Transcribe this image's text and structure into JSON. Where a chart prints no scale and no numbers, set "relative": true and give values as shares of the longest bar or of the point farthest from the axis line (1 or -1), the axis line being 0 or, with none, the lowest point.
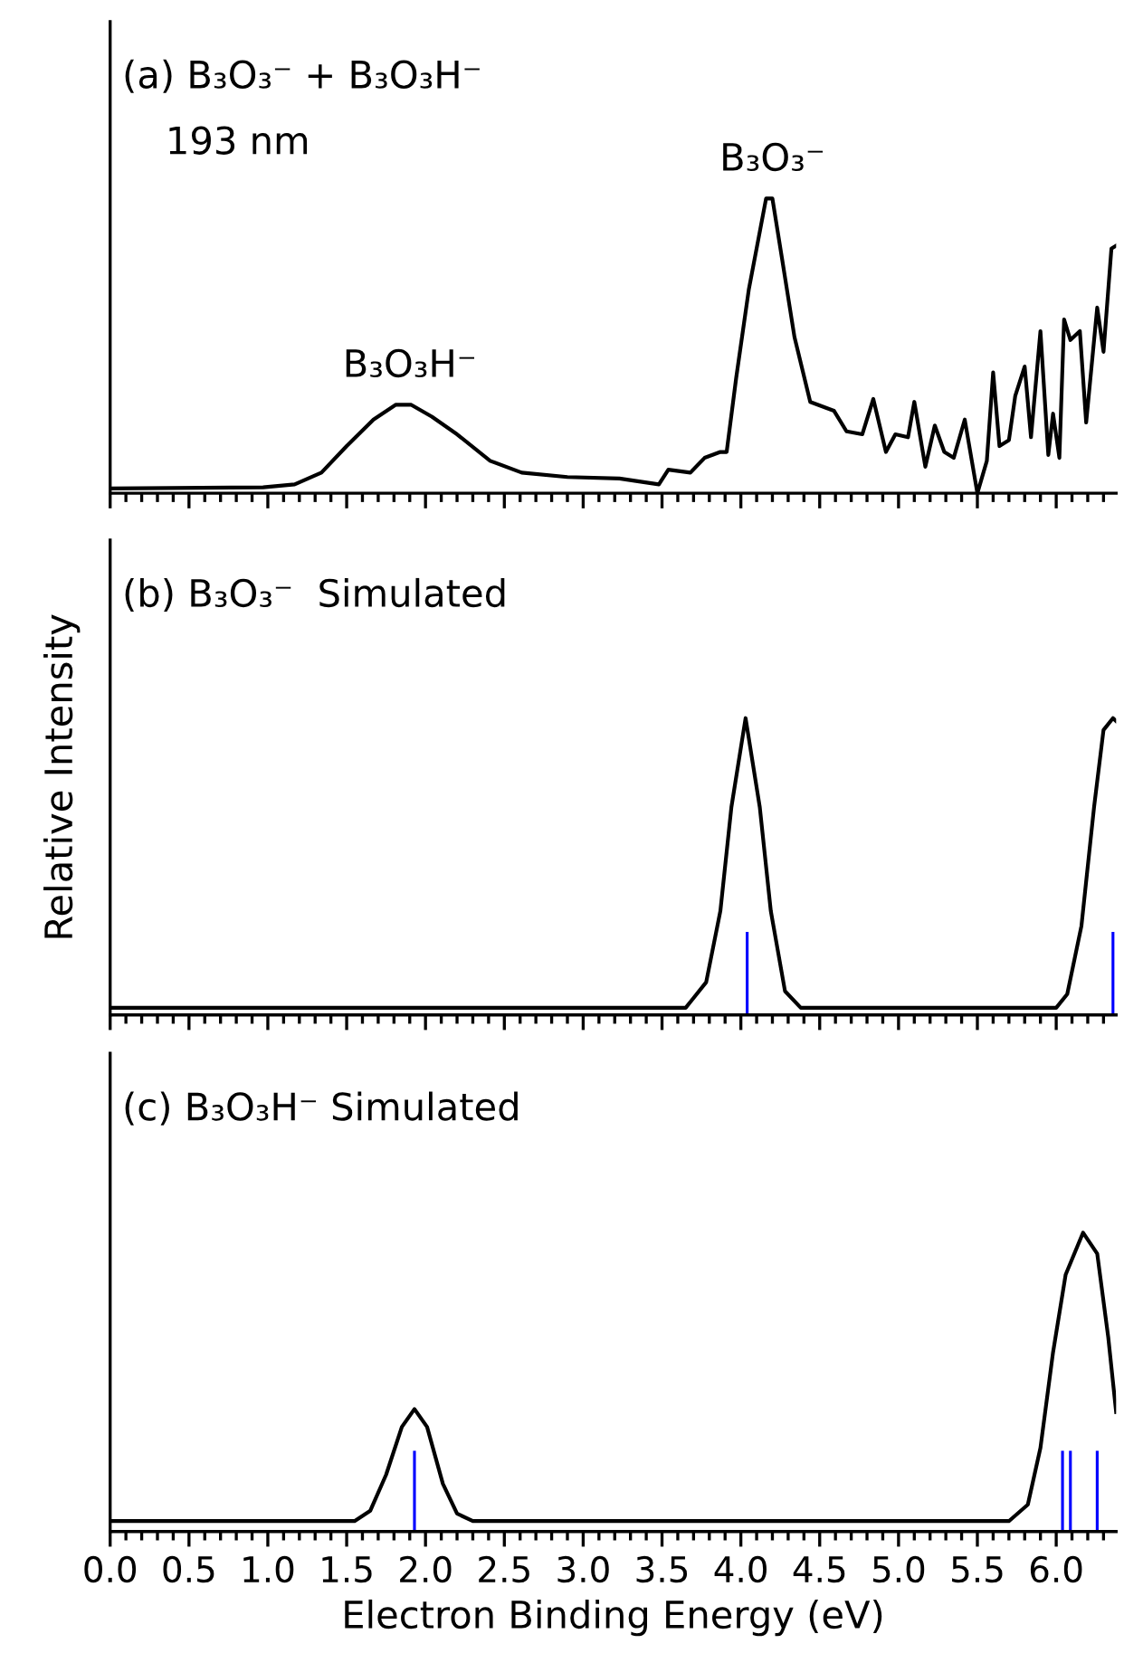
{
  "chart_data": [
    {
      "type": "line",
      "relative": true,
      "title": "(a) B₃O₃⁻ + B₃O₃H⁻",
      "subtitle": "193 nm",
      "xlim": [
        0,
        6.38
      ],
      "tick_labels": false,
      "xticks": [
        {
          "value": 0,
          "label": null
        },
        {
          "value": 0.1,
          "label": null
        },
        {
          "value": 0.2,
          "label": null
        },
        {
          "value": 0.3,
          "label": null
        },
        {
          "value": 0.4,
          "label": null
        },
        {
          "value": 0.5,
          "label": null
        },
        {
          "value": 0.6,
          "label": null
        },
        {
          "value": 0.7,
          "label": null
        },
        {
          "value": 0.8,
          "label": null
        },
        {
          "value": 0.9,
          "label": null
        },
        {
          "value": 1.0,
          "label": null
        },
        {
          "value": 1.1,
          "label": null
        },
        {
          "value": 1.2,
          "label": null
        },
        {
          "value": 1.3,
          "label": null
        },
        {
          "value": 1.4,
          "label": null
        },
        {
          "value": 1.5,
          "label": null
        },
        {
          "value": 1.6,
          "label": null
        },
        {
          "value": 1.7,
          "label": null
        },
        {
          "value": 1.8,
          "label": null
        },
        {
          "value": 1.9,
          "label": null
        },
        {
          "value": 2.0,
          "label": null
        },
        {
          "value": 2.1,
          "label": null
        },
        {
          "value": 2.2,
          "label": null
        },
        {
          "value": 2.3,
          "label": null
        },
        {
          "value": 2.4,
          "label": null
        },
        {
          "value": 2.5,
          "label": null
        },
        {
          "value": 2.6,
          "label": null
        },
        {
          "value": 2.7,
          "label": null
        },
        {
          "value": 2.8,
          "label": null
        },
        {
          "value": 2.9,
          "label": null
        },
        {
          "value": 3.0,
          "label": null
        },
        {
          "value": 3.1,
          "label": null
        },
        {
          "value": 3.2,
          "label": null
        },
        {
          "value": 3.3,
          "label": null
        },
        {
          "value": 3.4,
          "label": null
        },
        {
          "value": 3.5,
          "label": null
        },
        {
          "value": 3.6,
          "label": null
        },
        {
          "value": 3.7,
          "label": null
        },
        {
          "value": 3.8,
          "label": null
        },
        {
          "value": 3.9,
          "label": null
        },
        {
          "value": 4.0,
          "label": null
        },
        {
          "value": 4.1,
          "label": null
        },
        {
          "value": 4.2,
          "label": null
        },
        {
          "value": 4.3,
          "label": null
        },
        {
          "value": 4.4,
          "label": null
        },
        {
          "value": 4.5,
          "label": null
        },
        {
          "value": 4.6,
          "label": null
        },
        {
          "value": 4.7,
          "label": null
        },
        {
          "value": 4.8,
          "label": null
        },
        {
          "value": 4.9,
          "label": null
        },
        {
          "value": 5.0,
          "label": null
        },
        {
          "value": 5.1,
          "label": null
        },
        {
          "value": 5.2,
          "label": null
        },
        {
          "value": 5.3,
          "label": null
        },
        {
          "value": 5.4,
          "label": null
        },
        {
          "value": 5.5,
          "label": null
        },
        {
          "value": 5.6,
          "label": null
        },
        {
          "value": 5.7,
          "label": null
        },
        {
          "value": 5.8,
          "label": null
        },
        {
          "value": 5.9,
          "label": null
        },
        {
          "value": 6.0,
          "label": null
        },
        {
          "value": 6.1,
          "label": null
        },
        {
          "value": 6.2,
          "label": null
        },
        {
          "value": 6.3,
          "label": null
        }
      ],
      "annotations": [
        {
          "text": "B₃O₃H⁻",
          "x": 1.9,
          "y": 0.3
        },
        {
          "text": "B₃O₃⁻",
          "x": 4.2,
          "y": 1.0
        }
      ],
      "series": [
        {
          "color": "#000000",
          "x": [
            0,
            0.97,
            1.17,
            1.34,
            1.5,
            1.67,
            1.81,
            1.91,
            2.04,
            2.2,
            2.41,
            2.61,
            2.9,
            3.23,
            3.48,
            3.54,
            3.68,
            3.77,
            3.87,
            3.91,
            3.97,
            4.05,
            4.16,
            4.2,
            4.26,
            4.34,
            4.44,
            4.59,
            4.67,
            4.77,
            4.84,
            4.92,
            4.98,
            5.06,
            5.1,
            5.17,
            5.23,
            5.29,
            5.35,
            5.42,
            5.5,
            5.56,
            5.6,
            5.64,
            5.7,
            5.74,
            5.8,
            5.84,
            5.9,
            5.95,
            5.98,
            6.02,
            6.05,
            6.09,
            6.15,
            6.19,
            6.26,
            6.3,
            6.35,
            6.38
          ],
          "values": [
            0.016,
            0.02,
            0.03,
            0.07,
            0.16,
            0.25,
            0.3,
            0.3,
            0.26,
            0.2,
            0.11,
            0.07,
            0.055,
            0.05,
            0.03,
            0.08,
            0.07,
            0.12,
            0.14,
            0.14,
            0.39,
            0.69,
            1.0,
            1.0,
            0.8,
            0.53,
            0.31,
            0.28,
            0.21,
            0.2,
            0.32,
            0.14,
            0.2,
            0.19,
            0.31,
            0.09,
            0.23,
            0.14,
            0.12,
            0.25,
            0.0,
            0.11,
            0.41,
            0.16,
            0.18,
            0.33,
            0.43,
            0.19,
            0.55,
            0.13,
            0.27,
            0.12,
            0.59,
            0.52,
            0.55,
            0.24,
            0.63,
            0.48,
            0.83,
            0.84
          ]
        }
      ]
    },
    {
      "type": "line",
      "relative": true,
      "title": "(b) B₃O₃⁻  Simulated",
      "ylabel": "Relative Intensity",
      "xlim": [
        0,
        6.38
      ],
      "tick_labels": false,
      "xticks": [
        {
          "value": 0,
          "label": null
        },
        {
          "value": 0.1,
          "label": null
        },
        {
          "value": 0.2,
          "label": null
        },
        {
          "value": 0.3,
          "label": null
        },
        {
          "value": 0.4,
          "label": null
        },
        {
          "value": 0.5,
          "label": null
        },
        {
          "value": 0.6,
          "label": null
        },
        {
          "value": 0.7,
          "label": null
        },
        {
          "value": 0.8,
          "label": null
        },
        {
          "value": 0.9,
          "label": null
        },
        {
          "value": 1.0,
          "label": null
        },
        {
          "value": 1.1,
          "label": null
        },
        {
          "value": 1.2,
          "label": null
        },
        {
          "value": 1.3,
          "label": null
        },
        {
          "value": 1.4,
          "label": null
        },
        {
          "value": 1.5,
          "label": null
        },
        {
          "value": 1.6,
          "label": null
        },
        {
          "value": 1.7,
          "label": null
        },
        {
          "value": 1.8,
          "label": null
        },
        {
          "value": 1.9,
          "label": null
        },
        {
          "value": 2.0,
          "label": null
        },
        {
          "value": 2.1,
          "label": null
        },
        {
          "value": 2.2,
          "label": null
        },
        {
          "value": 2.3,
          "label": null
        },
        {
          "value": 2.4,
          "label": null
        },
        {
          "value": 2.5,
          "label": null
        },
        {
          "value": 2.6,
          "label": null
        },
        {
          "value": 2.7,
          "label": null
        },
        {
          "value": 2.8,
          "label": null
        },
        {
          "value": 2.9,
          "label": null
        },
        {
          "value": 3.0,
          "label": null
        },
        {
          "value": 3.1,
          "label": null
        },
        {
          "value": 3.2,
          "label": null
        },
        {
          "value": 3.3,
          "label": null
        },
        {
          "value": 3.4,
          "label": null
        },
        {
          "value": 3.5,
          "label": null
        },
        {
          "value": 3.6,
          "label": null
        },
        {
          "value": 3.7,
          "label": null
        },
        {
          "value": 3.8,
          "label": null
        },
        {
          "value": 3.9,
          "label": null
        },
        {
          "value": 4.0,
          "label": null
        },
        {
          "value": 4.1,
          "label": null
        },
        {
          "value": 4.2,
          "label": null
        },
        {
          "value": 4.3,
          "label": null
        },
        {
          "value": 4.4,
          "label": null
        },
        {
          "value": 4.5,
          "label": null
        },
        {
          "value": 4.6,
          "label": null
        },
        {
          "value": 4.7,
          "label": null
        },
        {
          "value": 4.8,
          "label": null
        },
        {
          "value": 4.9,
          "label": null
        },
        {
          "value": 5.0,
          "label": null
        },
        {
          "value": 5.1,
          "label": null
        },
        {
          "value": 5.2,
          "label": null
        },
        {
          "value": 5.3,
          "label": null
        },
        {
          "value": 5.4,
          "label": null
        },
        {
          "value": 5.5,
          "label": null
        },
        {
          "value": 5.6,
          "label": null
        },
        {
          "value": 5.7,
          "label": null
        },
        {
          "value": 5.8,
          "label": null
        },
        {
          "value": 5.9,
          "label": null
        },
        {
          "value": 6.0,
          "label": null
        },
        {
          "value": 6.1,
          "label": null
        },
        {
          "value": 6.2,
          "label": null
        },
        {
          "value": 6.3,
          "label": null
        }
      ],
      "series": [
        {
          "color": "#000000",
          "x": [
            0,
            3.65,
            3.78,
            3.87,
            3.94,
            4.03,
            4.12,
            4.19,
            4.28,
            4.38,
            6.0,
            6.07,
            6.16,
            6.24,
            6.3,
            6.36,
            6.38
          ],
          "values": [
            0.024,
            0.024,
            0.11,
            0.35,
            0.7,
            1.0,
            0.7,
            0.35,
            0.08,
            0.024,
            0.024,
            0.07,
            0.3,
            0.7,
            0.96,
            1.0,
            0.99
          ]
        },
        {
          "type": "bar",
          "color": "#0000ff",
          "x": [
            4.04,
            6.36
          ],
          "values": [
            0.28,
            0.28
          ]
        }
      ]
    },
    {
      "type": "line",
      "relative": true,
      "title": "(c) B₃O₃H⁻ Simulated",
      "xlabel": "Electron Binding Energy (eV)",
      "xlim": [
        0,
        6.38
      ],
      "tick_labels": "x",
      "xticks": [
        {
          "value": 0,
          "label": "0.0"
        },
        {
          "value": 0.1,
          "label": null
        },
        {
          "value": 0.2,
          "label": null
        },
        {
          "value": 0.3,
          "label": null
        },
        {
          "value": 0.4,
          "label": null
        },
        0.5,
        {
          "value": 0.6,
          "label": null
        },
        {
          "value": 0.7,
          "label": null
        },
        {
          "value": 0.8,
          "label": null
        },
        {
          "value": 0.9,
          "label": null
        },
        {
          "value": 1,
          "label": "1.0"
        },
        {
          "value": 1.1,
          "label": null
        },
        {
          "value": 1.2,
          "label": null
        },
        {
          "value": 1.3,
          "label": null
        },
        {
          "value": 1.4,
          "label": null
        },
        1.5,
        {
          "value": 1.6,
          "label": null
        },
        {
          "value": 1.7,
          "label": null
        },
        {
          "value": 1.8,
          "label": null
        },
        {
          "value": 1.9,
          "label": null
        },
        {
          "value": 2,
          "label": "2.0"
        },
        {
          "value": 2.1,
          "label": null
        },
        {
          "value": 2.2,
          "label": null
        },
        {
          "value": 2.3,
          "label": null
        },
        {
          "value": 2.4,
          "label": null
        },
        2.5,
        {
          "value": 2.6,
          "label": null
        },
        {
          "value": 2.7,
          "label": null
        },
        {
          "value": 2.8,
          "label": null
        },
        {
          "value": 2.9,
          "label": null
        },
        {
          "value": 3,
          "label": "3.0"
        },
        {
          "value": 3.1,
          "label": null
        },
        {
          "value": 3.2,
          "label": null
        },
        {
          "value": 3.3,
          "label": null
        },
        {
          "value": 3.4,
          "label": null
        },
        3.5,
        {
          "value": 3.6,
          "label": null
        },
        {
          "value": 3.7,
          "label": null
        },
        {
          "value": 3.8,
          "label": null
        },
        {
          "value": 3.9,
          "label": null
        },
        {
          "value": 4,
          "label": "4.0"
        },
        {
          "value": 4.1,
          "label": null
        },
        {
          "value": 4.2,
          "label": null
        },
        {
          "value": 4.3,
          "label": null
        },
        {
          "value": 4.4,
          "label": null
        },
        4.5,
        {
          "value": 4.6,
          "label": null
        },
        {
          "value": 4.7,
          "label": null
        },
        {
          "value": 4.8,
          "label": null
        },
        {
          "value": 4.9,
          "label": null
        },
        {
          "value": 5,
          "label": "5.0"
        },
        {
          "value": 5.1,
          "label": null
        },
        {
          "value": 5.2,
          "label": null
        },
        {
          "value": 5.3,
          "label": null
        },
        {
          "value": 5.4,
          "label": null
        },
        5.5,
        {
          "value": 5.6,
          "label": null
        },
        {
          "value": 5.7,
          "label": null
        },
        {
          "value": 5.8,
          "label": null
        },
        {
          "value": 5.9,
          "label": null
        },
        {
          "value": 6,
          "label": "6.0"
        },
        {
          "value": 6.1,
          "label": null
        },
        {
          "value": 6.2,
          "label": null
        },
        {
          "value": 6.3,
          "label": null
        }
      ],
      "series": [
        {
          "color": "#000000",
          "x": [
            0,
            1.55,
            1.65,
            1.75,
            1.85,
            1.93,
            2.01,
            2.11,
            2.2,
            2.3,
            5.7,
            5.82,
            5.9,
            5.98,
            6.06,
            6.17,
            6.26,
            6.33,
            6.38
          ],
          "values": [
            0.035,
            0.035,
            0.07,
            0.19,
            0.35,
            0.41,
            0.35,
            0.16,
            0.06,
            0.035,
            0.035,
            0.09,
            0.28,
            0.6,
            0.86,
            1.0,
            0.93,
            0.65,
            0.4
          ]
        },
        {
          "type": "bar",
          "color": "#0000ff",
          "x": [
            1.93,
            6.04,
            6.09,
            6.26
          ],
          "values": [
            0.27,
            0.27,
            0.27,
            0.27
          ]
        }
      ]
    }
  ]
}
